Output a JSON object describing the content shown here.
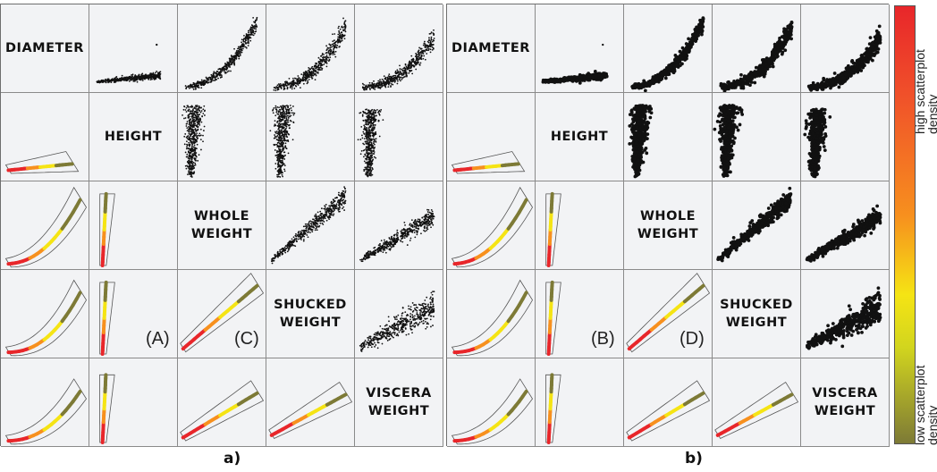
{
  "variables": [
    "DIAMETER",
    "HEIGHT",
    "WHOLE\nWEIGHT",
    "SHUCKED\nWEIGHT",
    "VISCERA\nWEIGHT"
  ],
  "panels": [
    {
      "id": "a",
      "caption": "a)",
      "scatter_style": "small-points"
    },
    {
      "id": "b",
      "caption": "b)",
      "scatter_style": "large-points"
    }
  ],
  "cell_tags": {
    "A": "(A)",
    "B": "(B)",
    "C": "(C)",
    "D": "(D)"
  },
  "colorbar": {
    "top_label": "high scatterplot\ndensity",
    "bottom_label": "low scatterplot\ndensity",
    "colors": [
      "#e8262a",
      "#f7901e",
      "#f5e414",
      "#7d7a36"
    ]
  },
  "colors": {
    "points": "#111111",
    "contour": "#555555",
    "cell_bg": "#f2f3f5"
  },
  "chart_data": [
    {
      "type": "scatter",
      "title": "",
      "panel": "a)",
      "layout": "scatterplot matrix",
      "upper_triangle": "scatterplots",
      "lower_triangle": "density contours"
    },
    {
      "type": "scatter",
      "title": "",
      "panel": "b)",
      "layout": "scatterplot matrix",
      "upper_triangle": "scatterplots",
      "lower_triangle": "density contours"
    }
  ]
}
